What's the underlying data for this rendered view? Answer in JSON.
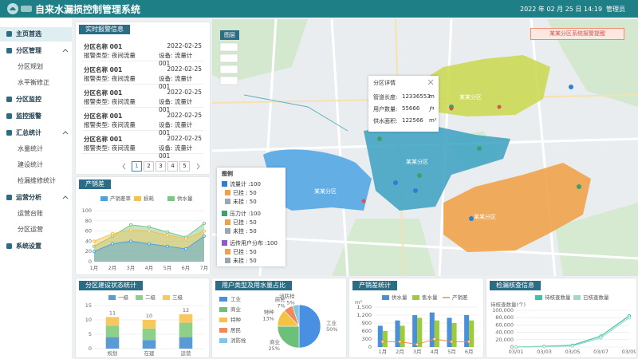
{
  "header": {
    "title": "自来水漏损控制管理系统",
    "datetime": "2022 年 02 月 25 日 14:19",
    "user": "管理员"
  },
  "menu": [
    {
      "label": "主页首选"
    },
    {
      "label": "分区管理",
      "children": [
        "分区规划",
        "水平衡修正"
      ]
    },
    {
      "label": "分区监控"
    },
    {
      "label": "监控报警"
    },
    {
      "label": "汇总统计",
      "children": [
        "水量统计",
        "建设统计",
        "检漏维修统计"
      ]
    },
    {
      "label": "运营分析",
      "children": [
        "运营台账",
        "分区运营"
      ]
    },
    {
      "label": "系统设置"
    }
  ],
  "alarms": {
    "title": "实时报警信息",
    "items": [
      {
        "zone": "分区名称 001",
        "date": "2022-02-25",
        "type": "报警类型: 夜间流量",
        "device": "设备: 流量计 001"
      },
      {
        "zone": "分区名称 001",
        "date": "2022-02-25",
        "type": "报警类型: 夜间流量",
        "device": "设备: 流量计 001"
      },
      {
        "zone": "分区名称 001",
        "date": "2022-02-25",
        "type": "报警类型: 夜间流量",
        "device": "设备: 流量计 001"
      },
      {
        "zone": "分区名称 001",
        "date": "2022-02-25",
        "type": "报警类型: 夜间流量",
        "device": "设备: 流量计 001"
      },
      {
        "zone": "分区名称 001",
        "date": "2022-02-25",
        "type": "报警类型: 夜间流量",
        "device": "设备: 流量计 001"
      }
    ],
    "pages": [
      1,
      2,
      3,
      4,
      5
    ]
  },
  "map": {
    "layer_button": "图层",
    "alarm_banner": "某某分区系统报警提醒",
    "zones": [
      "某某分区",
      "某某分区",
      "某某分区",
      "某某分区"
    ],
    "popup": {
      "title": "分区详情",
      "rows": [
        {
          "label": "管道长度:",
          "value": "12336553",
          "unit": "m"
        },
        {
          "label": "用户数量:",
          "value": "55666",
          "unit": "户"
        },
        {
          "label": "供水面积:",
          "value": "122566",
          "unit": "m²"
        }
      ]
    },
    "legend": {
      "title": "图例",
      "groups": [
        {
          "name": "流量计 :100",
          "items": [
            "已挂 : 50",
            "未挂 : 50"
          ]
        },
        {
          "name": "压力计 :100",
          "items": [
            "已挂 : 50",
            "未挂 : 50"
          ]
        },
        {
          "name": "远传用户分布 :100",
          "items": [
            "已挂 : 50",
            "未挂 : 50"
          ]
        }
      ]
    }
  },
  "chart_data": [
    {
      "type": "area",
      "title": "产销差",
      "categories": [
        "1月",
        "2月",
        "3月",
        "4月",
        "5月",
        "6月",
        "7月"
      ],
      "series": [
        {
          "name": "产销差率",
          "color": "#4aa3df",
          "values": [
            20,
            35,
            40,
            35,
            30,
            25,
            50
          ]
        },
        {
          "name": "损耗",
          "color": "#f2c14e",
          "values": [
            40,
            55,
            62,
            60,
            52,
            45,
            60
          ]
        },
        {
          "name": "供水量",
          "color": "#7cc68a",
          "values": [
            30,
            50,
            72,
            68,
            58,
            48,
            75
          ]
        }
      ],
      "ylim": [
        0,
        100
      ],
      "yticks": [
        0,
        20,
        40,
        60,
        80,
        100
      ]
    },
    {
      "type": "stacked_bar",
      "title": "分区建设状态统计",
      "categories": [
        "规划",
        "在建",
        "运营"
      ],
      "series": [
        {
          "name": "一级",
          "color": "#5b9bd5",
          "values": [
            4,
            3,
            4
          ]
        },
        {
          "name": "二级",
          "color": "#8dd08a",
          "values": [
            4,
            4,
            5
          ]
        },
        {
          "name": "三级",
          "color": "#f6c85f",
          "values": [
            3,
            3,
            3
          ]
        }
      ],
      "totals": [
        11,
        10,
        12
      ],
      "ylim": [
        0,
        15
      ],
      "yticks": [
        0,
        5,
        10,
        15
      ]
    },
    {
      "type": "pie",
      "title": "用户类型及用水量占比",
      "categories": [
        "工业",
        "商业",
        "特种",
        "居民",
        "消防栓"
      ],
      "values": [
        50,
        25,
        13,
        7,
        5
      ],
      "value_labels": [
        "50%",
        "25%",
        "13%",
        "7%",
        "5%"
      ],
      "colors": [
        "#4a90e2",
        "#6cc07a",
        "#f5c342",
        "#f08a5d",
        "#7ec8e3"
      ]
    },
    {
      "type": "bar_line",
      "title": "产销差统计",
      "ylabel": "m³",
      "categories": [
        "1月",
        "2月",
        "3月",
        "4月",
        "5月",
        "6月"
      ],
      "series": [
        {
          "name": "供水量",
          "kind": "bar",
          "color": "#4a90d9",
          "values": [
            800,
            1000,
            1200,
            1300,
            1100,
            1200
          ]
        },
        {
          "name": "售水量",
          "kind": "bar",
          "color": "#9ccc3c",
          "values": [
            600,
            800,
            1100,
            1000,
            900,
            1000
          ]
        },
        {
          "name": "产销差",
          "kind": "line",
          "color": "#f08c3c",
          "values": [
            200,
            200,
            100,
            300,
            200,
            200
          ]
        }
      ],
      "ylim": [
        0,
        1500
      ],
      "yticks": [
        0,
        300,
        600,
        900,
        {
          "value": 1200,
          "label": "1,200"
        },
        {
          "value": 1500,
          "label": "1,500"
        }
      ]
    },
    {
      "type": "line",
      "title": "检漏核查信息",
      "ylabel": "待核查数量(个)",
      "categories": [
        "03/01",
        "03/03",
        "03/05",
        "03/07",
        "03/09"
      ],
      "series": [
        {
          "name": "待核查数量",
          "color": "#3ec1a8",
          "values": [
            0,
            2000,
            5000,
            30000,
            85000
          ]
        },
        {
          "name": "已核查数量",
          "color": "#9fd9cc",
          "values": [
            0,
            1000,
            3000,
            25000,
            80000
          ]
        }
      ],
      "ylim": [
        0,
        100000
      ],
      "yticks": [
        0,
        {
          "value": 20000,
          "label": "20,000"
        },
        {
          "value": 40000,
          "label": "40,000"
        },
        {
          "value": 60000,
          "label": "60,000"
        },
        {
          "value": 80000,
          "label": "80,000"
        },
        {
          "value": 100000,
          "label": "100,000"
        }
      ]
    }
  ]
}
